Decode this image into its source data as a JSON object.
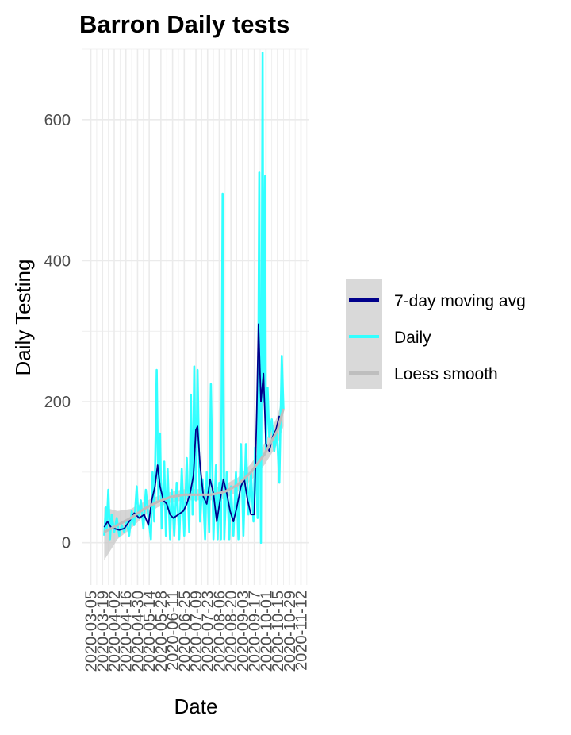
{
  "chart_data": {
    "type": "line",
    "title": "Barron Daily tests",
    "xlabel": "Date",
    "ylabel": "Daily Testing",
    "x_range": [
      "2020-02-23",
      "2020-11-22"
    ],
    "ylim": [
      -60,
      700
    ],
    "y_ticks": [
      0,
      200,
      400,
      600
    ],
    "x_ticks": [
      "2020-03-05",
      "2020-03-19",
      "2020-04-02",
      "2020-04-16",
      "2020-04-30",
      "2020-05-14",
      "2020-05-28",
      "2020-06-11",
      "2020-06-25",
      "2020-07-09",
      "2020-07-23",
      "2020-08-06",
      "2020-08-20",
      "2020-09-03",
      "2020-09-17",
      "2020-10-01",
      "2020-10-15",
      "2020-10-29",
      "2020-11-12"
    ],
    "grid": true,
    "legend_position": "right",
    "colors": {
      "moving_avg": "#00008b",
      "daily": "#33ffff",
      "loess": "#bebebe",
      "loess_band": "#c8c8c8",
      "grid": "#ebebeb",
      "legend_key_bg": "#d9d9d9"
    },
    "series": [
      {
        "name": "Daily",
        "color": "#33ffff",
        "points": [
          [
            "2020-03-21",
            10
          ],
          [
            "2020-03-23",
            50
          ],
          [
            "2020-03-24",
            20
          ],
          [
            "2020-03-26",
            75
          ],
          [
            "2020-03-28",
            5
          ],
          [
            "2020-03-30",
            40
          ],
          [
            "2020-04-02",
            15
          ],
          [
            "2020-04-05",
            35
          ],
          [
            "2020-04-08",
            10
          ],
          [
            "2020-04-11",
            25
          ],
          [
            "2020-04-14",
            15
          ],
          [
            "2020-04-17",
            30
          ],
          [
            "2020-04-20",
            10
          ],
          [
            "2020-04-23",
            45
          ],
          [
            "2020-04-26",
            25
          ],
          [
            "2020-04-29",
            80
          ],
          [
            "2020-05-01",
            35
          ],
          [
            "2020-05-04",
            60
          ],
          [
            "2020-05-07",
            20
          ],
          [
            "2020-05-10",
            75
          ],
          [
            "2020-05-13",
            35
          ],
          [
            "2020-05-16",
            5
          ],
          [
            "2020-05-18",
            100
          ],
          [
            "2020-05-20",
            30
          ],
          [
            "2020-05-23",
            245
          ],
          [
            "2020-05-25",
            60
          ],
          [
            "2020-05-27",
            155
          ],
          [
            "2020-05-29",
            20
          ],
          [
            "2020-06-01",
            115
          ],
          [
            "2020-06-03",
            10
          ],
          [
            "2020-06-05",
            105
          ],
          [
            "2020-06-08",
            5
          ],
          [
            "2020-06-10",
            75
          ],
          [
            "2020-06-13",
            10
          ],
          [
            "2020-06-16",
            85
          ],
          [
            "2020-06-19",
            5
          ],
          [
            "2020-06-22",
            105
          ],
          [
            "2020-06-25",
            10
          ],
          [
            "2020-06-28",
            120
          ],
          [
            "2020-07-01",
            15
          ],
          [
            "2020-07-03",
            210
          ],
          [
            "2020-07-05",
            40
          ],
          [
            "2020-07-07",
            250
          ],
          [
            "2020-07-09",
            60
          ],
          [
            "2020-07-11",
            245
          ],
          [
            "2020-07-14",
            30
          ],
          [
            "2020-07-17",
            90
          ],
          [
            "2020-07-20",
            5
          ],
          [
            "2020-07-22",
            100
          ],
          [
            "2020-07-25",
            15
          ],
          [
            "2020-07-27",
            225
          ],
          [
            "2020-07-30",
            5
          ],
          [
            "2020-08-02",
            110
          ],
          [
            "2020-08-04",
            5
          ],
          [
            "2020-08-06",
            85
          ],
          [
            "2020-08-08",
            5
          ],
          [
            "2020-08-10",
            495
          ],
          [
            "2020-08-12",
            5
          ],
          [
            "2020-08-15",
            100
          ],
          [
            "2020-08-18",
            5
          ],
          [
            "2020-08-20",
            80
          ],
          [
            "2020-08-23",
            10
          ],
          [
            "2020-08-26",
            100
          ],
          [
            "2020-08-29",
            5
          ],
          [
            "2020-09-01",
            140
          ],
          [
            "2020-09-04",
            10
          ],
          [
            "2020-09-07",
            140
          ],
          [
            "2020-09-10",
            40
          ],
          [
            "2020-09-13",
            100
          ],
          [
            "2020-09-16",
            30
          ],
          [
            "2020-09-18",
            135
          ],
          [
            "2020-09-21",
            35
          ],
          [
            "2020-09-23",
            525
          ],
          [
            "2020-09-24",
            160
          ],
          [
            "2020-09-25",
            0
          ],
          [
            "2020-09-27",
            695
          ],
          [
            "2020-09-28",
            200
          ],
          [
            "2020-09-30",
            520
          ],
          [
            "2020-10-01",
            130
          ],
          [
            "2020-10-03",
            220
          ],
          [
            "2020-10-05",
            150
          ],
          [
            "2020-10-08",
            175
          ],
          [
            "2020-10-11",
            130
          ],
          [
            "2020-10-14",
            160
          ],
          [
            "2020-10-17",
            85
          ],
          [
            "2020-10-20",
            265
          ],
          [
            "2020-10-22",
            190
          ]
        ]
      },
      {
        "name": "7-day moving avg",
        "color": "#00008b",
        "points": [
          [
            "2020-03-21",
            22
          ],
          [
            "2020-03-25",
            30
          ],
          [
            "2020-03-29",
            22
          ],
          [
            "2020-04-02",
            20
          ],
          [
            "2020-04-08",
            18
          ],
          [
            "2020-04-14",
            20
          ],
          [
            "2020-04-20",
            30
          ],
          [
            "2020-04-26",
            42
          ],
          [
            "2020-05-02",
            35
          ],
          [
            "2020-05-08",
            40
          ],
          [
            "2020-05-13",
            25
          ],
          [
            "2020-05-17",
            60
          ],
          [
            "2020-05-21",
            80
          ],
          [
            "2020-05-24",
            110
          ],
          [
            "2020-05-27",
            80
          ],
          [
            "2020-05-31",
            60
          ],
          [
            "2020-06-04",
            55
          ],
          [
            "2020-06-08",
            40
          ],
          [
            "2020-06-12",
            35
          ],
          [
            "2020-06-18",
            40
          ],
          [
            "2020-06-24",
            45
          ],
          [
            "2020-06-28",
            55
          ],
          [
            "2020-07-02",
            70
          ],
          [
            "2020-07-06",
            95
          ],
          [
            "2020-07-09",
            160
          ],
          [
            "2020-07-11",
            165
          ],
          [
            "2020-07-14",
            110
          ],
          [
            "2020-07-18",
            65
          ],
          [
            "2020-07-22",
            55
          ],
          [
            "2020-07-26",
            90
          ],
          [
            "2020-07-30",
            70
          ],
          [
            "2020-08-03",
            30
          ],
          [
            "2020-08-07",
            60
          ],
          [
            "2020-08-11",
            90
          ],
          [
            "2020-08-15",
            70
          ],
          [
            "2020-08-19",
            45
          ],
          [
            "2020-08-23",
            30
          ],
          [
            "2020-08-27",
            50
          ],
          [
            "2020-09-01",
            80
          ],
          [
            "2020-09-05",
            90
          ],
          [
            "2020-09-09",
            60
          ],
          [
            "2020-09-13",
            40
          ],
          [
            "2020-09-17",
            40
          ],
          [
            "2020-09-20",
            190
          ],
          [
            "2020-09-22",
            310
          ],
          [
            "2020-09-25",
            200
          ],
          [
            "2020-09-28",
            240
          ],
          [
            "2020-10-01",
            140
          ],
          [
            "2020-10-05",
            130
          ],
          [
            "2020-10-09",
            150
          ],
          [
            "2020-10-13",
            160
          ],
          [
            "2020-10-17",
            180
          ]
        ]
      },
      {
        "name": "Loess smooth",
        "color": "#bebebe",
        "points": [
          [
            "2020-03-21",
            15
          ],
          [
            "2020-04-06",
            25
          ],
          [
            "2020-04-22",
            35
          ],
          [
            "2020-05-08",
            48
          ],
          [
            "2020-05-24",
            58
          ],
          [
            "2020-06-09",
            65
          ],
          [
            "2020-06-25",
            68
          ],
          [
            "2020-07-11",
            68
          ],
          [
            "2020-07-27",
            68
          ],
          [
            "2020-08-12",
            72
          ],
          [
            "2020-08-28",
            82
          ],
          [
            "2020-09-13",
            100
          ],
          [
            "2020-09-29",
            125
          ],
          [
            "2020-10-15",
            160
          ],
          [
            "2020-10-22",
            190
          ]
        ],
        "band_lower": [
          -25,
          5,
          20,
          38,
          50,
          57,
          60,
          60,
          60,
          62,
          72,
          88,
          110,
          140,
          165
        ],
        "band_upper": [
          50,
          45,
          48,
          58,
          66,
          72,
          76,
          76,
          76,
          82,
          92,
          112,
          140,
          180,
          215
        ]
      }
    ]
  }
}
